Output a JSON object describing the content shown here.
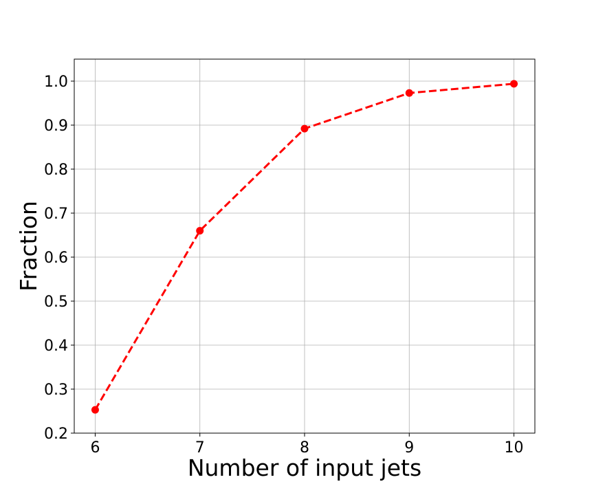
{
  "chart_data": {
    "type": "line",
    "title": "",
    "xlabel": "Number of input jets",
    "ylabel": "Fraction",
    "x": [
      6,
      7,
      8,
      9,
      10
    ],
    "series": [
      {
        "values": [
          0.253,
          0.66,
          0.892,
          0.973,
          0.994
        ],
        "color": "#ff0000",
        "line_style": "dashed",
        "marker": "circle"
      }
    ],
    "xlim": [
      5.8,
      10.2
    ],
    "ylim": [
      0.2,
      1.05
    ],
    "xticks": [
      6,
      7,
      8,
      9,
      10
    ],
    "xtick_labels": [
      "6",
      "7",
      "8",
      "9",
      "10"
    ],
    "yticks": [
      0.2,
      0.3,
      0.4,
      0.5,
      0.6,
      0.7,
      0.8,
      0.9,
      1.0
    ],
    "ytick_labels": [
      "0.2",
      "0.3",
      "0.4",
      "0.5",
      "0.6",
      "0.7",
      "0.8",
      "0.9",
      "1.0"
    ],
    "grid": true,
    "legend": "none"
  }
}
